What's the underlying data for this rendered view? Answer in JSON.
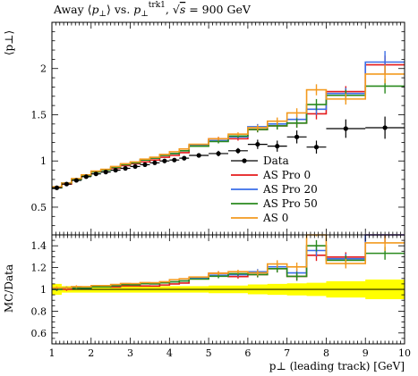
{
  "chart_data": {
    "type": "line",
    "title": "Away ⟨p⊥⟩ vs. p⊥trk1, √s = 900 GeV",
    "title_parts": {
      "prefix": "Away ⟨",
      "p": "p",
      "perp": "⊥",
      "mid": "⟩ vs. ",
      "sup": "trk1",
      "sep": ", ",
      "sqrt": "√",
      "s": "s",
      "energy": " = 900 GeV"
    },
    "xlabel": "p⊥ (leading track) [GeV]",
    "ylabel_top": "⟨p⊥⟩",
    "ylabel_bottom": "MC/Data",
    "xlim": [
      1,
      10
    ],
    "ylim_top": [
      0.2,
      2.5
    ],
    "ylim_bottom": [
      0.5,
      1.5
    ],
    "xticks": [
      1,
      2,
      3,
      4,
      5,
      6,
      7,
      8,
      9,
      10
    ],
    "yticks_top": [
      0.5,
      1,
      1.5,
      2
    ],
    "yticks_top_labels": [
      "0.5",
      "1",
      "1.5",
      "2"
    ],
    "yticks_bottom": [
      0.6,
      0.8,
      1,
      1.2,
      1.4
    ],
    "yticks_bottom_labels": [
      "0.6",
      "0.8",
      "1",
      "1.2",
      "1.4"
    ],
    "legend_position": "lower-right",
    "bin_edges": [
      1,
      1.25,
      1.5,
      1.75,
      2,
      2.25,
      2.5,
      2.75,
      3,
      3.25,
      3.5,
      3.75,
      4,
      4.25,
      4.5,
      5,
      5.5,
      6,
      6.5,
      7,
      7.5,
      8,
      9,
      10
    ],
    "data": {
      "name": "Data",
      "color": "#000000",
      "x": [
        1.125,
        1.375,
        1.625,
        1.875,
        2.125,
        2.375,
        2.625,
        2.875,
        3.125,
        3.375,
        3.625,
        3.875,
        4.125,
        4.375,
        4.75,
        5.25,
        5.75,
        6.25,
        6.75,
        7.25,
        7.75,
        8.5,
        9.5
      ],
      "y": [
        0.71,
        0.75,
        0.79,
        0.83,
        0.86,
        0.88,
        0.9,
        0.92,
        0.94,
        0.96,
        0.98,
        1.0,
        1.01,
        1.03,
        1.06,
        1.08,
        1.11,
        1.18,
        1.16,
        1.26,
        1.15,
        1.35,
        1.36
      ],
      "yerr": [
        0.02,
        0.02,
        0.02,
        0.02,
        0.02,
        0.02,
        0.02,
        0.02,
        0.02,
        0.02,
        0.02,
        0.02,
        0.02,
        0.02,
        0.02,
        0.03,
        0.03,
        0.05,
        0.06,
        0.07,
        0.07,
        0.1,
        0.12
      ],
      "band_hi": [
        1.05,
        1.03,
        1.03,
        1.03,
        1.03,
        1.03,
        1.03,
        1.03,
        1.03,
        1.03,
        1.03,
        1.03,
        1.03,
        1.03,
        1.03,
        1.035,
        1.035,
        1.045,
        1.05,
        1.055,
        1.06,
        1.075,
        1.09
      ],
      "band_lo": [
        0.95,
        0.97,
        0.97,
        0.97,
        0.97,
        0.97,
        0.97,
        0.97,
        0.97,
        0.97,
        0.97,
        0.97,
        0.97,
        0.97,
        0.97,
        0.965,
        0.965,
        0.955,
        0.95,
        0.945,
        0.94,
        0.925,
        0.91
      ]
    },
    "series": [
      {
        "name": "AS Pro 0",
        "color": "#e41a1c",
        "values": [
          0.71,
          0.75,
          0.8,
          0.84,
          0.88,
          0.9,
          0.92,
          0.95,
          0.97,
          0.99,
          1.01,
          1.04,
          1.06,
          1.09,
          1.17,
          1.24,
          1.24,
          1.34,
          1.38,
          1.41,
          1.51,
          1.75,
          2.04
        ],
        "errors": [
          0.01,
          0.01,
          0.01,
          0.01,
          0.01,
          0.01,
          0.01,
          0.01,
          0.01,
          0.01,
          0.01,
          0.01,
          0.01,
          0.01,
          0.01,
          0.02,
          0.02,
          0.03,
          0.04,
          0.05,
          0.06,
          0.06,
          0.1
        ]
      },
      {
        "name": "AS Pro 20",
        "color": "#3a6ee8",
        "values": [
          0.71,
          0.76,
          0.8,
          0.84,
          0.88,
          0.9,
          0.93,
          0.96,
          0.98,
          1.01,
          1.03,
          1.06,
          1.08,
          1.11,
          1.17,
          1.22,
          1.26,
          1.37,
          1.4,
          1.45,
          1.56,
          1.73,
          2.07
        ],
        "errors": [
          0.01,
          0.01,
          0.01,
          0.01,
          0.01,
          0.01,
          0.01,
          0.01,
          0.01,
          0.01,
          0.01,
          0.01,
          0.01,
          0.01,
          0.01,
          0.02,
          0.02,
          0.03,
          0.04,
          0.05,
          0.06,
          0.06,
          0.12
        ]
      },
      {
        "name": "AS Pro 50",
        "color": "#2a8a1e",
        "values": [
          0.71,
          0.76,
          0.8,
          0.84,
          0.88,
          0.9,
          0.93,
          0.96,
          0.98,
          1.01,
          1.03,
          1.06,
          1.08,
          1.11,
          1.16,
          1.21,
          1.27,
          1.34,
          1.38,
          1.41,
          1.61,
          1.71,
          1.81
        ],
        "errors": [
          0.01,
          0.01,
          0.01,
          0.01,
          0.01,
          0.01,
          0.01,
          0.01,
          0.01,
          0.01,
          0.01,
          0.01,
          0.01,
          0.01,
          0.01,
          0.02,
          0.02,
          0.03,
          0.04,
          0.05,
          0.06,
          0.06,
          0.08
        ]
      },
      {
        "name": "AS 0",
        "color": "#f39a1e",
        "values": [
          0.72,
          0.76,
          0.81,
          0.85,
          0.89,
          0.91,
          0.94,
          0.97,
          0.99,
          1.02,
          1.04,
          1.07,
          1.1,
          1.13,
          1.18,
          1.24,
          1.29,
          1.36,
          1.43,
          1.52,
          1.77,
          1.67,
          1.94
        ],
        "errors": [
          0.01,
          0.01,
          0.01,
          0.01,
          0.01,
          0.01,
          0.01,
          0.01,
          0.01,
          0.01,
          0.01,
          0.01,
          0.01,
          0.01,
          0.01,
          0.02,
          0.02,
          0.03,
          0.04,
          0.05,
          0.06,
          0.06,
          0.1
        ]
      }
    ]
  }
}
